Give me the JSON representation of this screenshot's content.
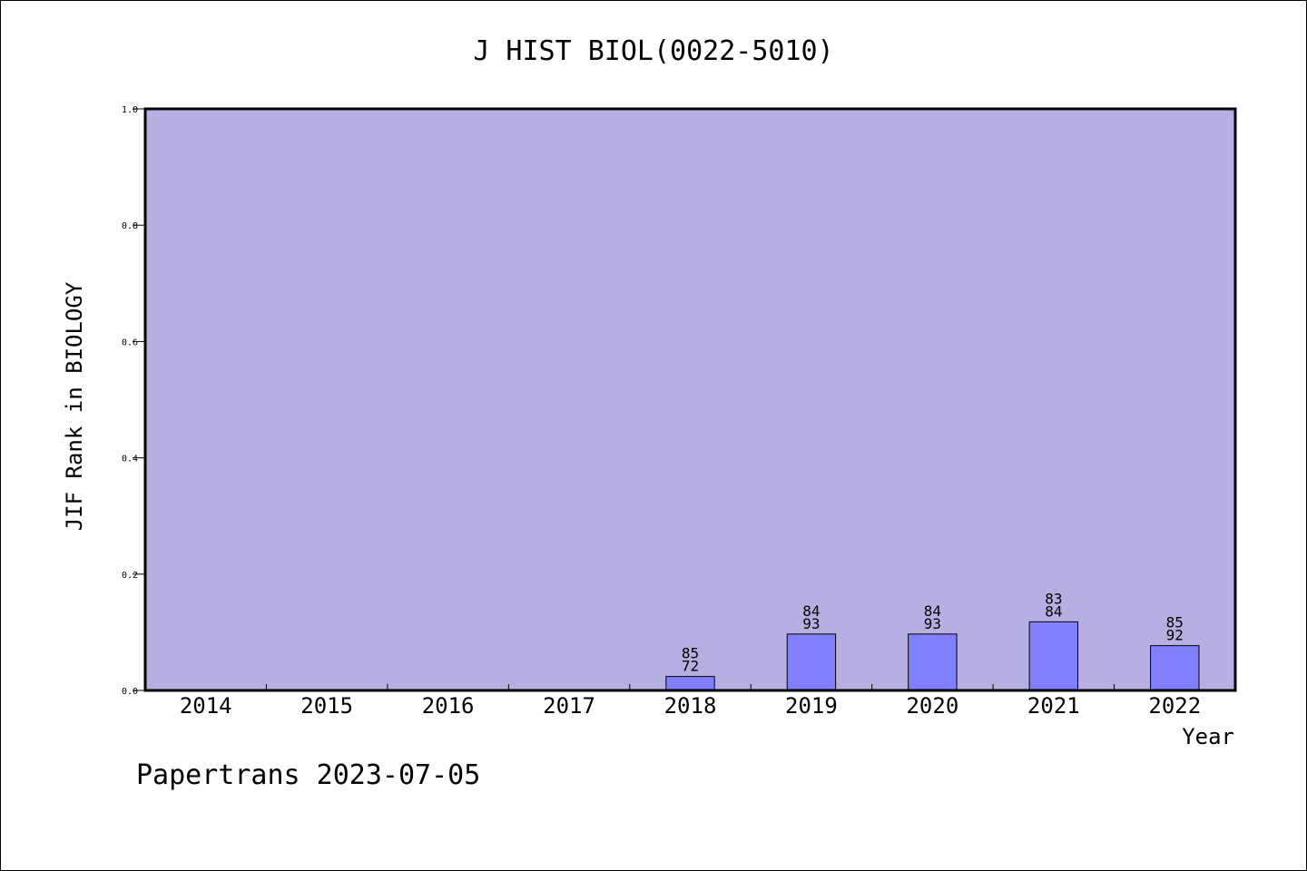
{
  "colors": {
    "plot_background": "#b6b0e2",
    "bar_fill": "#8080fd",
    "bar_stroke": "#000000",
    "frame": "#000000"
  },
  "footer": {
    "text": "Papertrans 2023-07-05"
  },
  "chart_data": {
    "type": "bar",
    "title": "J HIST BIOL(0022-5010)",
    "xlabel": "Year",
    "ylabel": "JIF Rank in BIOLOGY",
    "ylim": [
      0.0,
      1.0
    ],
    "yticks": [
      "0.0",
      "0.2",
      "0.4",
      "0.6",
      "0.8",
      "1.0"
    ],
    "grid": false,
    "legend": "none",
    "categories": [
      "2014",
      "2015",
      "2016",
      "2017",
      "2018",
      "2019",
      "2020",
      "2021",
      "2022"
    ],
    "values": [
      null,
      null,
      null,
      null,
      0.024,
      0.097,
      0.097,
      0.118,
      0.077
    ],
    "bar_labels": [
      null,
      null,
      null,
      null,
      [
        "85",
        "72"
      ],
      [
        "84",
        "93"
      ],
      [
        "84",
        "93"
      ],
      [
        "83",
        "84"
      ],
      [
        "85",
        "92"
      ]
    ]
  }
}
